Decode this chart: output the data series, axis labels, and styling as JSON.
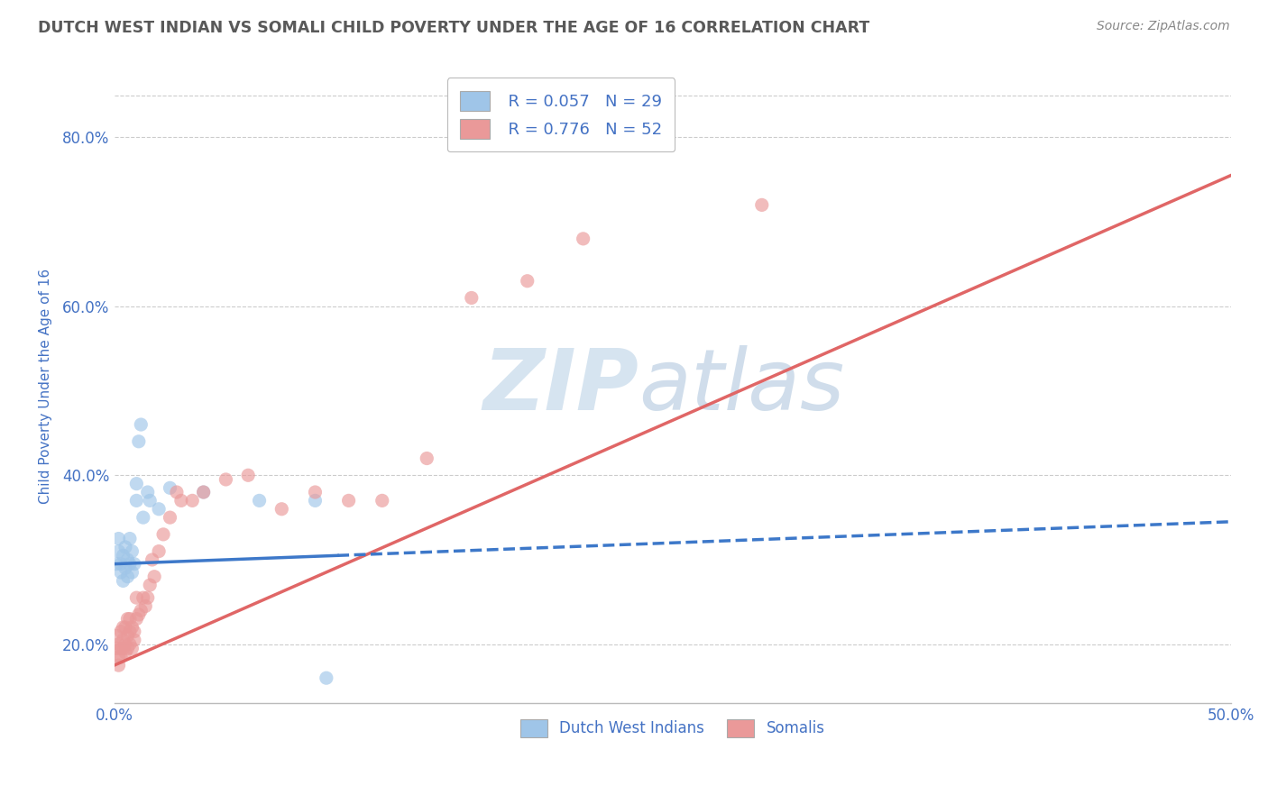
{
  "title": "DUTCH WEST INDIAN VS SOMALI CHILD POVERTY UNDER THE AGE OF 16 CORRELATION CHART",
  "source": "Source: ZipAtlas.com",
  "ylabel": "Child Poverty Under the Age of 16",
  "xlim": [
    0.0,
    0.5
  ],
  "ylim": [
    0.13,
    0.88
  ],
  "xticks": [
    0.0,
    0.05,
    0.1,
    0.15,
    0.2,
    0.25,
    0.3,
    0.35,
    0.4,
    0.45,
    0.5
  ],
  "yticks": [
    0.2,
    0.4,
    0.6,
    0.8
  ],
  "legend_blue_r": "R = 0.057",
  "legend_blue_n": "N = 29",
  "legend_pink_r": "R = 0.776",
  "legend_pink_n": "N = 52",
  "blue_color": "#9fc5e8",
  "pink_color": "#ea9999",
  "blue_line_color": "#3d78c9",
  "pink_line_color": "#e06666",
  "grid_color": "#cccccc",
  "title_color": "#595959",
  "tick_color": "#4472c4",
  "watermark_color": "#d6e4f0",
  "background_color": "#ffffff",
  "dutch_x": [
    0.001,
    0.002,
    0.002,
    0.003,
    0.003,
    0.004,
    0.004,
    0.005,
    0.005,
    0.006,
    0.006,
    0.007,
    0.007,
    0.008,
    0.008,
    0.009,
    0.01,
    0.01,
    0.011,
    0.012,
    0.013,
    0.015,
    0.016,
    0.02,
    0.025,
    0.04,
    0.065,
    0.09,
    0.095
  ],
  "dutch_y": [
    0.295,
    0.31,
    0.325,
    0.295,
    0.285,
    0.305,
    0.275,
    0.315,
    0.29,
    0.28,
    0.3,
    0.325,
    0.295,
    0.31,
    0.285,
    0.295,
    0.37,
    0.39,
    0.44,
    0.46,
    0.35,
    0.38,
    0.37,
    0.36,
    0.385,
    0.38,
    0.37,
    0.37,
    0.16
  ],
  "somali_x": [
    0.001,
    0.001,
    0.002,
    0.002,
    0.002,
    0.003,
    0.003,
    0.003,
    0.004,
    0.004,
    0.004,
    0.005,
    0.005,
    0.005,
    0.006,
    0.006,
    0.006,
    0.007,
    0.007,
    0.007,
    0.008,
    0.008,
    0.009,
    0.009,
    0.01,
    0.01,
    0.011,
    0.012,
    0.013,
    0.014,
    0.015,
    0.016,
    0.017,
    0.018,
    0.02,
    0.022,
    0.025,
    0.028,
    0.03,
    0.035,
    0.04,
    0.05,
    0.06,
    0.075,
    0.09,
    0.105,
    0.12,
    0.14,
    0.16,
    0.185,
    0.21,
    0.29
  ],
  "somali_y": [
    0.195,
    0.21,
    0.185,
    0.175,
    0.2,
    0.185,
    0.195,
    0.215,
    0.195,
    0.205,
    0.22,
    0.2,
    0.19,
    0.22,
    0.195,
    0.21,
    0.23,
    0.2,
    0.215,
    0.23,
    0.22,
    0.195,
    0.205,
    0.215,
    0.23,
    0.255,
    0.235,
    0.24,
    0.255,
    0.245,
    0.255,
    0.27,
    0.3,
    0.28,
    0.31,
    0.33,
    0.35,
    0.38,
    0.37,
    0.37,
    0.38,
    0.395,
    0.4,
    0.36,
    0.38,
    0.37,
    0.37,
    0.42,
    0.61,
    0.63,
    0.68,
    0.72
  ]
}
